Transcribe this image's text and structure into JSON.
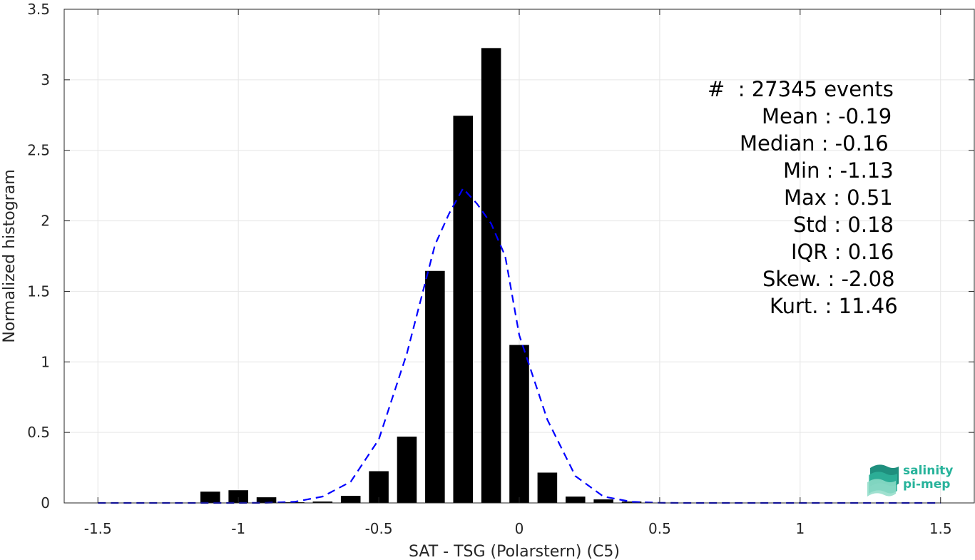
{
  "chart_data": {
    "type": "bar",
    "xlabel": "SAT - TSG (Polarstern) (C5)",
    "ylabel": "Normalized histogram",
    "xlim": [
      -1.62,
      1.62
    ],
    "ylim": [
      0,
      3.5
    ],
    "x_ticks": [
      -1.5,
      -1,
      -0.5,
      0,
      0.5,
      1,
      1.5
    ],
    "x_tick_labels": [
      "-1.5",
      "-1",
      "-0.5",
      "0",
      "0.5",
      "1",
      "1.5"
    ],
    "y_ticks": [
      0,
      0.5,
      1,
      1.5,
      2,
      2.5,
      3,
      3.5
    ],
    "y_tick_labels": [
      "0",
      "0.5",
      "1",
      "1.5",
      "2",
      "2.5",
      "3",
      "3.5"
    ],
    "grid": true,
    "bar_width": 0.07,
    "series": [
      {
        "type": "bar",
        "color": "#000000",
        "x": [
          -1.1,
          -1.0,
          -0.9,
          -0.8,
          -0.7,
          -0.6,
          -0.5,
          -0.4,
          -0.3,
          -0.2,
          -0.1,
          0.0,
          0.1,
          0.2,
          0.3,
          0.4
        ],
        "values": [
          0.08,
          0.09,
          0.04,
          0.005,
          0.01,
          0.05,
          0.225,
          0.47,
          1.645,
          2.745,
          3.225,
          1.12,
          0.215,
          0.045,
          0.025,
          0.01
        ]
      },
      {
        "type": "line",
        "style": "dashed",
        "color": "#0000ff",
        "x": [
          -1.5,
          -1.4,
          -1.3,
          -1.2,
          -1.1,
          -1.0,
          -0.9,
          -0.8,
          -0.7,
          -0.6,
          -0.5,
          -0.4,
          -0.3,
          -0.25,
          -0.2,
          -0.15,
          -0.1,
          -0.05,
          0.0,
          0.1,
          0.2,
          0.3,
          0.4,
          0.5,
          0.6,
          0.8,
          1.0,
          1.2,
          1.5
        ],
        "values": [
          0,
          0,
          0,
          0,
          0,
          0,
          0.001,
          0.008,
          0.045,
          0.15,
          0.45,
          1.06,
          1.83,
          2.05,
          2.23,
          2.12,
          1.98,
          1.75,
          1.19,
          0.59,
          0.19,
          0.045,
          0.008,
          0.001,
          0,
          0,
          0,
          0,
          0
        ]
      }
    ]
  },
  "stats": [
    {
      "text": "#  : 27345 events"
    },
    {
      "text": "Mean : -0.19"
    },
    {
      "text": "Median : -0.16"
    },
    {
      "text": "Min : -1.13"
    },
    {
      "text": "Max : 0.51"
    },
    {
      "text": "Std : 0.18"
    },
    {
      "text": "IQR : 0.16"
    },
    {
      "text": "Skew. : -2.08"
    },
    {
      "text": "Kurt. : 11.46"
    }
  ],
  "logo": {
    "line1": "salinity",
    "line2": "pi-mep",
    "color": "#27b39b"
  }
}
